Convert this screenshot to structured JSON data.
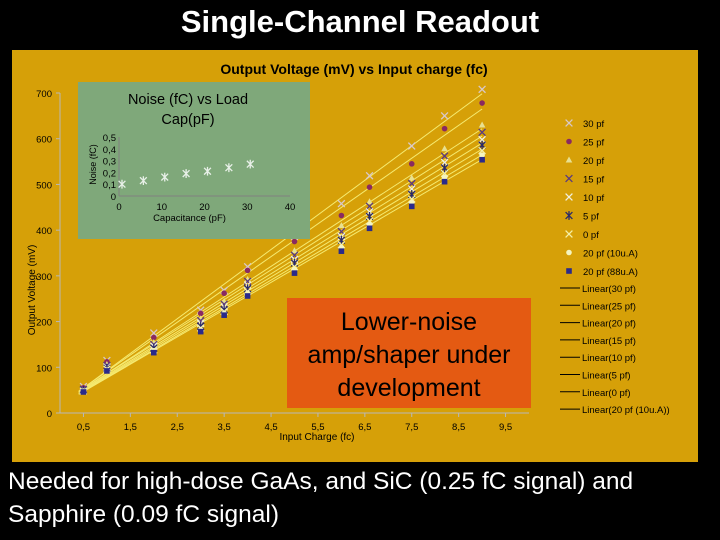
{
  "slide": {
    "title": "Single-Channel Readout",
    "caption": "Needed for high-dose GaAs, and SiC (0.25 fC signal) and Sapphire (0.09 fC signal)"
  },
  "callout": {
    "line1": "Lower-noise",
    "line2": "amp/shaper under",
    "line3": "development",
    "color": "#e45a12"
  },
  "colors": {
    "panel": "#d6a008",
    "inset": "#7fa87a",
    "lines": "#f5ea70",
    "frame": "#b8b8b8"
  },
  "chart_data": [
    {
      "type": "line",
      "title": "Output Voltage (mV) vs Input charge (fc)",
      "xlabel": "Input Charge (fc)",
      "ylabel": "Output Voltage (mV)",
      "xlim": [
        0,
        10
      ],
      "ylim": [
        0,
        700
      ],
      "x_ticks": [
        "0,5",
        "1,5",
        "2,5",
        "3,5",
        "4,5",
        "5,5",
        "6,5",
        "7,5",
        "8,5",
        "9,5"
      ],
      "y_ticks": [
        "0",
        "100",
        "200",
        "300",
        "400",
        "500",
        "600",
        "700"
      ],
      "legend_position": "right",
      "x": [
        0.5,
        1,
        2,
        3,
        3.5,
        4,
        5,
        6,
        6.6,
        7.5,
        8.2,
        9
      ],
      "series": [
        {
          "name": "30 pf",
          "color": "#d8c8c8",
          "marker": "x",
          "values": [
            58,
            115,
            175,
            225,
            268,
            320,
            386,
            458,
            519,
            584,
            650,
            708
          ]
        },
        {
          "name": "25 pf",
          "color": "#8a2a60",
          "marker": "circle",
          "values": [
            55,
            112,
            165,
            218,
            262,
            312,
            375,
            432,
            494,
            545,
            622,
            678
          ]
        },
        {
          "name": "20 pf",
          "color": "#e8e090",
          "marker": "triangle",
          "values": [
            52,
            106,
            154,
            206,
            244,
            292,
            355,
            410,
            462,
            514,
            578,
            630
          ]
        },
        {
          "name": "15 pf",
          "color": "#5a3a80",
          "marker": "x",
          "values": [
            52,
            104,
            150,
            202,
            238,
            288,
            345,
            397,
            452,
            502,
            562,
            614
          ]
        },
        {
          "name": "10 pf",
          "color": "#f0f0e0",
          "marker": "x",
          "values": [
            50,
            100,
            146,
            196,
            232,
            280,
            336,
            386,
            440,
            490,
            548,
            598
          ]
        },
        {
          "name": "5 pf",
          "color": "#2a2a6a",
          "marker": "star",
          "values": [
            50,
            98,
            142,
            190,
            226,
            272,
            328,
            378,
            430,
            478,
            536,
            586
          ]
        },
        {
          "name": "0 pf",
          "color": "#f5f0a8",
          "marker": "x",
          "values": [
            48,
            96,
            138,
            186,
            222,
            266,
            320,
            368,
            420,
            468,
            524,
            574
          ]
        },
        {
          "name": "20 pf (10u.A)",
          "color": "#f5f5c0",
          "marker": "circle",
          "values": [
            48,
            94,
            136,
            182,
            218,
            262,
            314,
            362,
            412,
            460,
            515,
            564
          ]
        },
        {
          "name": "20 pf (88u.A)",
          "color": "#2a2a8a",
          "marker": "square",
          "values": [
            46,
            92,
            132,
            178,
            214,
            256,
            306,
            354,
            404,
            452,
            506,
            554
          ]
        }
      ],
      "fit_lines": [
        "Linear(30 pf)",
        "Linear(25 pf)",
        "Linear(20 pf)",
        "Linear(15 pf)",
        "Linear(10 pf)",
        "Linear(5 pf)",
        "Linear(0 pf)",
        "Linear(20 pf (10u.A))"
      ]
    },
    {
      "type": "scatter",
      "title": "Noise (fC) vs Load Cap(pF)",
      "xlabel": "Capacitance (pF)",
      "ylabel": "Noise (fC)",
      "xlim": [
        0,
        40
      ],
      "ylim": [
        0,
        0.5
      ],
      "x_ticks": [
        "0",
        "10",
        "20",
        "30",
        "40"
      ],
      "y_ticks": [
        "0",
        "0,1",
        "0,2",
        "0,3",
        "0,4",
        "0,5"
      ],
      "x": [
        0,
        5,
        10,
        15,
        20,
        25,
        30
      ],
      "values": [
        0.1,
        0.13,
        0.16,
        0.19,
        0.21,
        0.24,
        0.27
      ]
    }
  ]
}
